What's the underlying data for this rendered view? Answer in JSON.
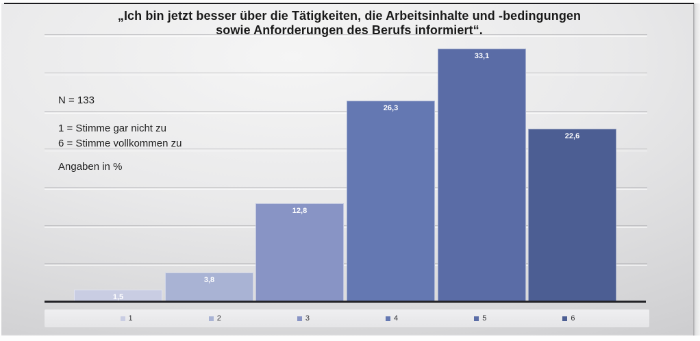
{
  "title": {
    "line1": "„Ich bin jetzt besser über die Tätigkeiten, die Arbeitsinhalte und -bedingungen",
    "line2": "sowie Anforderungen des Berufs informiert“."
  },
  "annotations": {
    "n_label": "N = 133",
    "scale_min": "1 = Stimme gar nicht zu",
    "scale_max": "6 = Stimme vollkommen zu",
    "unit_note": "Angaben in %"
  },
  "chart_data": {
    "type": "bar",
    "title": "„Ich bin jetzt besser über die Tätigkeiten, die Arbeitsinhalte und -bedingungen sowie Anforderungen des Berufs informiert“.",
    "categories": [
      "1",
      "2",
      "3",
      "4",
      "5",
      "6"
    ],
    "values": [
      1.5,
      3.8,
      12.8,
      26.3,
      33.1,
      22.6
    ],
    "value_labels": [
      "1,5",
      "3,8",
      "12,8",
      "26,3",
      "33,1",
      "22,6"
    ],
    "bar_colors": [
      "#c9cde3",
      "#a9b3d4",
      "#8894c5",
      "#6478b2",
      "#5a6ca6",
      "#4c5e93"
    ],
    "xlabel": "",
    "ylabel": "",
    "ylim": [
      0,
      35
    ],
    "gridline_values": [
      5,
      10,
      15,
      20,
      25,
      30,
      35
    ],
    "grid": true,
    "legend_position": "bottom",
    "sample_size": 133,
    "units": "%",
    "scale_note_min": "1 = Stimme gar nicht zu",
    "scale_note_max": "6 = Stimme vollkommen zu"
  }
}
